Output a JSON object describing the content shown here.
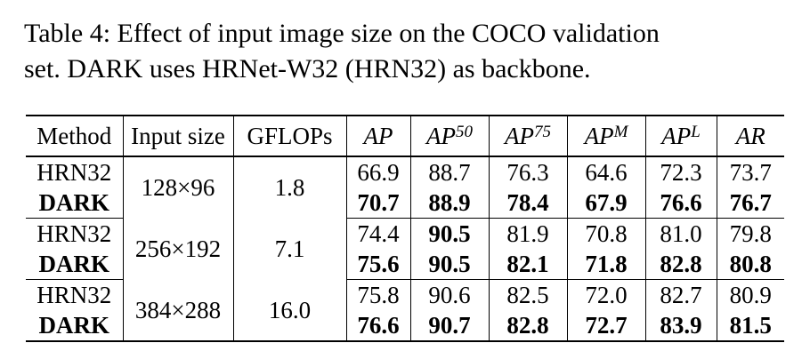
{
  "caption": {
    "line1": "Table 4:  Effect of input image size on the COCO validation",
    "line2": "set. DARK uses HRNet-W32 (HRN32) as backbone."
  },
  "table": {
    "headers": {
      "method": "Method",
      "input_size": "Input size",
      "gflops": "GFLOPs",
      "ap": "AP",
      "ap50_base": "AP",
      "ap50_sup": "50",
      "ap75_base": "AP",
      "ap75_sup": "75",
      "apm_base": "AP",
      "apm_sup": "M",
      "apl_base": "AP",
      "apl_sup": "L",
      "ar": "AR"
    },
    "groups": [
      {
        "input_size": "128×96",
        "gflops": "1.8",
        "rows": [
          {
            "method": "HRN32",
            "ap": "66.9",
            "ap50": "88.7",
            "ap75": "76.3",
            "apm": "64.6",
            "apl": "72.3",
            "ar": "73.7"
          },
          {
            "method": "DARK",
            "ap": "70.7",
            "ap50": "88.9",
            "ap75": "78.4",
            "apm": "67.9",
            "apl": "76.6",
            "ar": "76.7"
          }
        ]
      },
      {
        "input_size": "256×192",
        "gflops": "7.1",
        "rows": [
          {
            "method": "HRN32",
            "ap": "74.4",
            "ap50": "90.5",
            "ap75": "81.9",
            "apm": "70.8",
            "apl": "81.0",
            "ar": "79.8"
          },
          {
            "method": "DARK",
            "ap": "75.6",
            "ap50": "90.5",
            "ap75": "82.1",
            "apm": "71.8",
            "apl": "82.8",
            "ar": "80.8"
          }
        ]
      },
      {
        "input_size": "384×288",
        "gflops": "16.0",
        "rows": [
          {
            "method": "HRN32",
            "ap": "75.8",
            "ap50": "90.6",
            "ap75": "82.5",
            "apm": "72.0",
            "apl": "82.7",
            "ar": "80.9"
          },
          {
            "method": "DARK",
            "ap": "76.6",
            "ap50": "90.7",
            "ap75": "82.8",
            "apm": "72.7",
            "apl": "83.9",
            "ar": "81.5"
          }
        ]
      }
    ]
  }
}
